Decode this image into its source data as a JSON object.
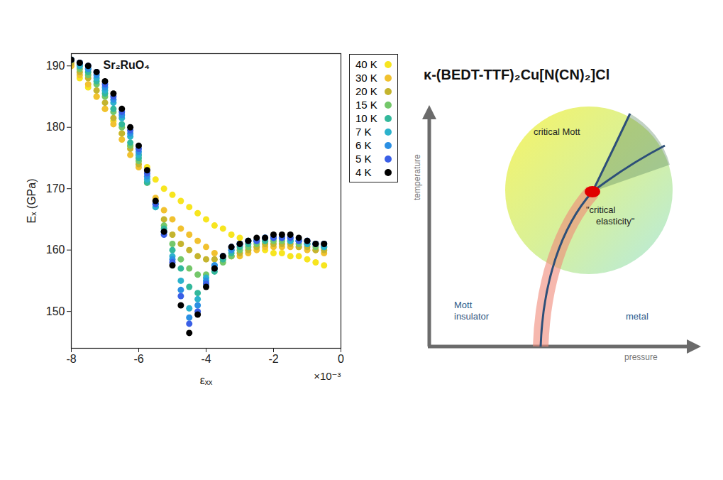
{
  "chart_data": {
    "type": "scatter",
    "title": "Sr₂RuO₄",
    "x_label": "εₓₓ",
    "y_label": "Eₓ (GPa)",
    "annotations": [
      "×10⁻³"
    ],
    "x": [
      -8,
      -7.75,
      -7.5,
      -7.25,
      -7,
      -6.75,
      -6.5,
      -6.25,
      -6,
      -5.75,
      -5.5,
      -5.25,
      -5,
      -4.75,
      -4.5,
      -4.25,
      -4,
      -3.75,
      -3.5,
      -3.25,
      -3,
      -2.75,
      -2.5,
      -2.25,
      -2,
      -1.75,
      -1.5,
      -1.25,
      -1,
      -0.75,
      -0.5
    ],
    "series": [
      {
        "name": "40 K",
        "color": "#f7e51f",
        "values": [
          190,
          188,
          186.5,
          185,
          183,
          181,
          179,
          177,
          175.5,
          173.5,
          171.5,
          170,
          169,
          168,
          167,
          166,
          165,
          164,
          163.5,
          162.5,
          162,
          161.5,
          160.5,
          160,
          159.5,
          159.5,
          159,
          159,
          158.5,
          158,
          157.5
        ]
      },
      {
        "name": "30 K",
        "color": "#f1c12f",
        "values": [
          190,
          188.5,
          187,
          185,
          183,
          180.5,
          178,
          175.5,
          173.5,
          171,
          168.5,
          166.5,
          165,
          163.5,
          162.5,
          161.5,
          160.5,
          159.5,
          159,
          159,
          159,
          159.5,
          160,
          160.5,
          160.5,
          160.5,
          160.5,
          160.5,
          160,
          160,
          159.5
        ]
      },
      {
        "name": "20 K",
        "color": "#c4b42e",
        "values": [
          190.5,
          189,
          188,
          186,
          184,
          181.5,
          179,
          176.5,
          174,
          171,
          168,
          165,
          162.5,
          161,
          160,
          159,
          158.5,
          158.5,
          158.5,
          159,
          159.5,
          160,
          160.5,
          161,
          161,
          161,
          161,
          160.5,
          160.5,
          160,
          160
        ]
      },
      {
        "name": "15 K",
        "color": "#74c76a",
        "values": [
          191,
          189.5,
          188.5,
          187,
          185,
          182.5,
          180,
          177,
          174.5,
          171,
          167.5,
          164,
          161,
          158.5,
          157,
          156,
          156,
          157,
          158,
          159,
          160,
          160.5,
          161,
          161.5,
          161.5,
          161.5,
          161.5,
          161,
          161,
          160.5,
          160.5
        ]
      },
      {
        "name": "10 K",
        "color": "#33b89b",
        "values": [
          191,
          190,
          189,
          187.5,
          185.5,
          183,
          180.5,
          177.5,
          175,
          171,
          167,
          163.5,
          160,
          157,
          154,
          153,
          154.5,
          156.5,
          158.5,
          159.5,
          160.5,
          161,
          161.5,
          161.5,
          162,
          162,
          161.5,
          161.5,
          161,
          161,
          160.5
        ]
      },
      {
        "name": "7 K",
        "color": "#2cb2cc",
        "values": [
          191,
          190,
          189.5,
          188,
          186,
          184,
          181.5,
          178.5,
          175.5,
          171.5,
          167,
          163,
          159,
          155,
          150.5,
          152,
          155.5,
          157.5,
          159,
          160,
          161,
          161.5,
          161.5,
          162,
          162,
          162,
          161.5,
          161.5,
          161,
          161,
          160.5
        ]
      },
      {
        "name": "6 K",
        "color": "#2b8fe3",
        "values": [
          191,
          190.5,
          189.5,
          188.5,
          186.5,
          184.5,
          182,
          179,
          176,
          172,
          167.5,
          163,
          158.5,
          153.5,
          149,
          151,
          155,
          157.5,
          159,
          160,
          161,
          161.5,
          161.5,
          162,
          162,
          162,
          162,
          161.5,
          161.5,
          161,
          161
        ]
      },
      {
        "name": "5 K",
        "color": "#3a5fe6",
        "values": [
          191,
          190.5,
          190,
          189,
          187,
          185,
          182.5,
          179.5,
          176.5,
          172.5,
          167.5,
          162.5,
          158,
          152.5,
          148,
          150,
          154.5,
          157,
          159,
          160.5,
          161,
          161.5,
          161.5,
          162,
          162,
          162,
          162,
          161.5,
          161.5,
          161,
          161
        ]
      },
      {
        "name": "4 K",
        "color": "#000000",
        "values": [
          191,
          190.5,
          190,
          189,
          187.5,
          185.5,
          183,
          180,
          177,
          173,
          168,
          163,
          157.5,
          151,
          146.5,
          149.5,
          154,
          157,
          159,
          160.5,
          161,
          161.5,
          162,
          162,
          162.5,
          162.5,
          162.5,
          162,
          161.5,
          161,
          161
        ]
      }
    ],
    "xlim": [
      -8,
      0
    ],
    "ylim": [
      144,
      192
    ],
    "xticks": [
      -8,
      -6,
      -4,
      -2,
      0
    ],
    "yticks": [
      150,
      160,
      170,
      180,
      190
    ],
    "legend": "top-right",
    "marker": "circle"
  },
  "diagram": {
    "title": "κ-(BEDT-TTF)₂Cu[N(CN)₂]Cl",
    "y_axis": "temperature",
    "x_axis": "pressure",
    "labels": {
      "critical_region": "critical Mott",
      "critical_point": "\"critical elasticity\"",
      "left_phase": "Mott insulator",
      "right_phase": "metal"
    }
  }
}
